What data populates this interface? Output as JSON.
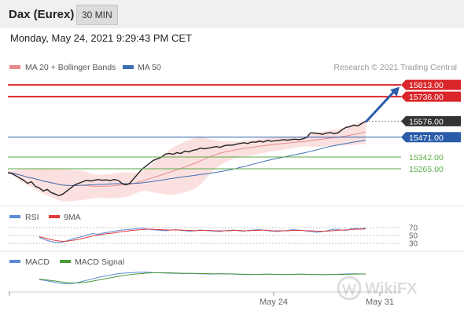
{
  "header": {
    "instrument": "Dax (Eurex)",
    "timeframe": "30 MIN"
  },
  "timestamp": "Monday, May 24, 2021 9:29:43 PM CET",
  "legend": {
    "ma20_bollinger": "MA 20 + Bollinger Bands",
    "ma50": "MA 50"
  },
  "watermark": "Research © 2021 Trading Central",
  "logo_text": "WikiFX",
  "colors": {
    "resistance": "#d9262a",
    "pivot": "#2a5caa",
    "support": "#5aaa46",
    "current": "#333333",
    "price": "#222222",
    "ma20": "#e88a8a",
    "bollinger_fill": "#fbe0e0",
    "ma50": "#3d6fb5",
    "rsi": "#5b8ad6",
    "rsi_ma": "#e03a3a",
    "macd": "#5b8ad6",
    "macd_signal": "#4a9a3a",
    "arrow": "#2a5caa"
  },
  "chart_data": [
    {
      "type": "line",
      "panel": "price",
      "x_ticks": [
        "May 24",
        "May 31"
      ],
      "ylim": [
        15060,
        15880
      ],
      "levels": [
        {
          "value": 15813.0,
          "label": "15813.00",
          "kind": "resistance"
        },
        {
          "value": 15736.0,
          "label": "15736.00",
          "kind": "resistance"
        },
        {
          "value": 15576.0,
          "label": "15576.00",
          "kind": "current"
        },
        {
          "value": 15471.0,
          "label": "15471.00",
          "kind": "pivot"
        },
        {
          "value": 15342.0,
          "label": "15342.00",
          "kind": "support"
        },
        {
          "value": 15265.0,
          "label": "15265.00",
          "kind": "support"
        }
      ],
      "arrow": {
        "from": 15570,
        "to": 15800,
        "direction": "up"
      },
      "series": [
        {
          "name": "MA 20 + Bollinger Bands",
          "role": "ma20"
        },
        {
          "name": "MA 50",
          "role": "ma50"
        }
      ],
      "close": [
        15240,
        15235,
        15220,
        15205,
        15190,
        15170,
        15180,
        15150,
        15140,
        15120,
        15130,
        15110,
        15100,
        15090,
        15100,
        15120,
        15140,
        15160,
        15170,
        15180,
        15190,
        15185,
        15190,
        15195,
        15190,
        15192,
        15188,
        15195,
        15190,
        15170,
        15160,
        15170,
        15200,
        15230,
        15260,
        15280,
        15300,
        15320,
        15330,
        15340,
        15360,
        15365,
        15360,
        15370,
        15365,
        15380,
        15375,
        15385,
        15390,
        15400,
        15395,
        15400,
        15405,
        15410,
        15405,
        15415,
        15420,
        15418,
        15425,
        15430,
        15435,
        15430,
        15440,
        15438,
        15445,
        15440,
        15450,
        15445,
        15448,
        15450,
        15455,
        15452,
        15455,
        15458,
        15455,
        15460,
        15470,
        15500,
        15498,
        15495,
        15490,
        15498,
        15502,
        15495,
        15500,
        15520,
        15535,
        15540,
        15550,
        15545,
        15560,
        15576
      ]
    },
    {
      "type": "line",
      "panel": "rsi",
      "legend": [
        "RSI",
        "9MA"
      ],
      "levels": [
        70,
        50,
        30
      ],
      "ylim": [
        20,
        80
      ],
      "series": [
        {
          "name": "RSI",
          "values": [
            45,
            40,
            36,
            33,
            32,
            34,
            38,
            42,
            45,
            48,
            52,
            55,
            53,
            56,
            58,
            60,
            62,
            64,
            65,
            66,
            68,
            69,
            67,
            65,
            64,
            63,
            62,
            64,
            65,
            63,
            62,
            61,
            62,
            64,
            63,
            62,
            61,
            60,
            62,
            63,
            64,
            62,
            61,
            63,
            64,
            65,
            64,
            62,
            61,
            60,
            62,
            63,
            65,
            64,
            63,
            61,
            60,
            58,
            60,
            62,
            65,
            66,
            64,
            63,
            67,
            68,
            67,
            69
          ]
        },
        {
          "name": "9MA",
          "values": [
            47,
            44,
            41,
            38,
            36,
            35,
            36,
            38,
            40,
            43,
            46,
            49,
            51,
            53,
            55,
            56,
            58,
            60,
            61,
            63,
            64,
            65,
            66,
            66,
            65,
            65,
            64,
            64,
            64,
            64,
            63,
            63,
            62,
            63,
            63,
            63,
            62,
            62,
            62,
            62,
            63,
            63,
            62,
            62,
            63,
            63,
            64,
            63,
            62,
            62,
            62,
            62,
            63,
            63,
            63,
            62,
            62,
            61,
            61,
            61,
            62,
            63,
            64,
            64,
            65,
            66,
            66,
            67
          ]
        }
      ]
    },
    {
      "type": "line",
      "panel": "macd",
      "legend": [
        "MACD",
        "MACD Signal"
      ],
      "ylim": [
        -60,
        60
      ],
      "series": [
        {
          "name": "MACD",
          "values": [
            -5,
            -10,
            -16,
            -22,
            -28,
            -30,
            -28,
            -22,
            -14,
            -6,
            2,
            10,
            16,
            22,
            28,
            32,
            34,
            36,
            38,
            38,
            37,
            35,
            34,
            33,
            32,
            31,
            30,
            31,
            30,
            29,
            28,
            27,
            28,
            29,
            28,
            27,
            26,
            25,
            24,
            25,
            26,
            27,
            26,
            25,
            24,
            25,
            26,
            27,
            26,
            25,
            24,
            23,
            24,
            25,
            26,
            27,
            28,
            29,
            28,
            27
          ]
        },
        {
          "name": "MACD Signal",
          "values": [
            -3,
            -6,
            -10,
            -14,
            -19,
            -23,
            -25,
            -25,
            -22,
            -18,
            -12,
            -6,
            0,
            6,
            12,
            17,
            22,
            26,
            29,
            32,
            34,
            35,
            35,
            35,
            34,
            33,
            32,
            31,
            31,
            30,
            30,
            29,
            29,
            29,
            28,
            28,
            27,
            26,
            26,
            25,
            25,
            26,
            26,
            26,
            25,
            25,
            25,
            26,
            26,
            25,
            25,
            24,
            24,
            24,
            25,
            25,
            26,
            27,
            27,
            27
          ]
        }
      ]
    }
  ]
}
